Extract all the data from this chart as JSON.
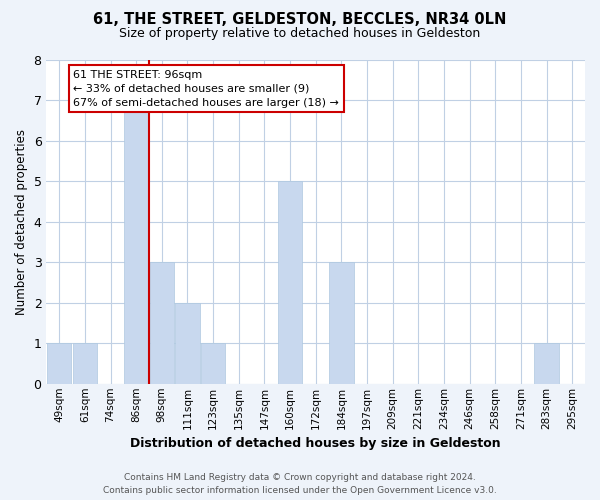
{
  "title": "61, THE STREET, GELDESTON, BECCLES, NR34 0LN",
  "subtitle": "Size of property relative to detached houses in Geldeston",
  "xlabel": "Distribution of detached houses by size in Geldeston",
  "ylabel": "Number of detached properties",
  "bin_labels": [
    "49sqm",
    "61sqm",
    "74sqm",
    "86sqm",
    "98sqm",
    "111sqm",
    "123sqm",
    "135sqm",
    "147sqm",
    "160sqm",
    "172sqm",
    "184sqm",
    "197sqm",
    "209sqm",
    "221sqm",
    "234sqm",
    "246sqm",
    "258sqm",
    "271sqm",
    "283sqm",
    "295sqm"
  ],
  "bar_heights": [
    1,
    1,
    0,
    7,
    3,
    2,
    1,
    0,
    0,
    5,
    0,
    3,
    0,
    0,
    0,
    0,
    0,
    0,
    0,
    1,
    0
  ],
  "bar_color": "#c8d8ee",
  "bar_edge_color": "#aec8e0",
  "vline_index": 3,
  "vline_color": "#cc0000",
  "ylim": [
    0,
    8
  ],
  "yticks": [
    0,
    1,
    2,
    3,
    4,
    5,
    6,
    7,
    8
  ],
  "annotation_line1": "61 THE STREET: 96sqm",
  "annotation_line2": "← 33% of detached houses are smaller (9)",
  "annotation_line3": "67% of semi-detached houses are larger (18) →",
  "annotation_box_color": "#ffffff",
  "annotation_border_color": "#cc0000",
  "footer_line1": "Contains HM Land Registry data © Crown copyright and database right 2024.",
  "footer_line2": "Contains public sector information licensed under the Open Government Licence v3.0.",
  "bg_color": "#eef3fa",
  "plot_bg_color": "#ffffff",
  "grid_color": "#c0d0e4"
}
